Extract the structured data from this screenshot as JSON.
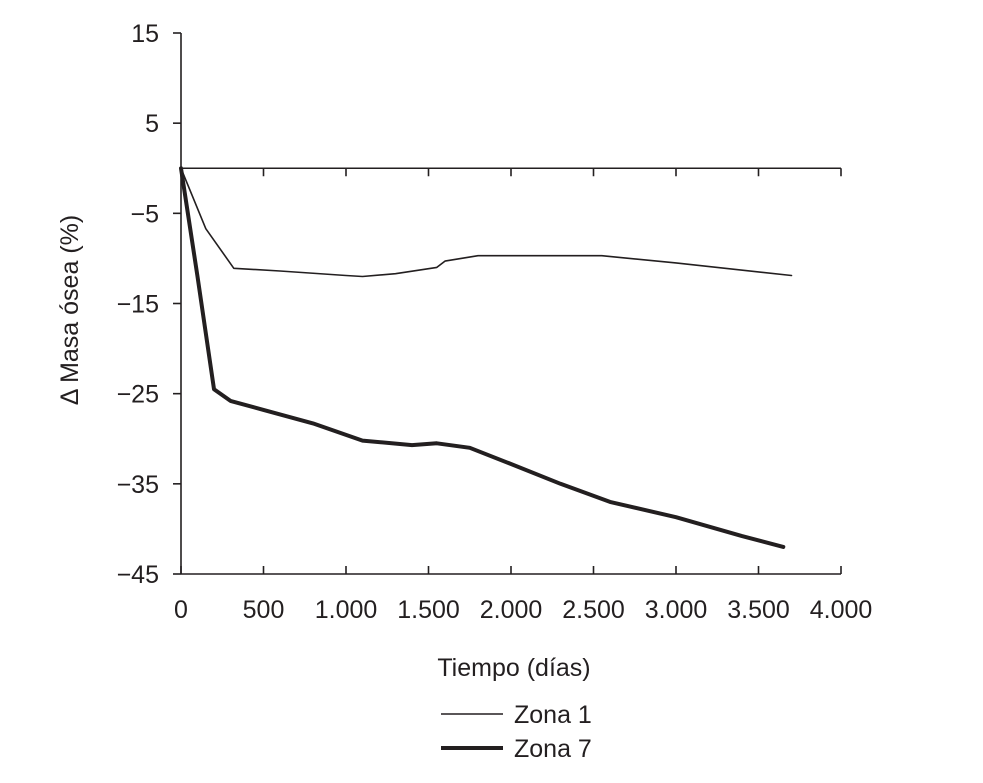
{
  "chart_data": {
    "type": "line",
    "title": "",
    "xlabel": "Tiempo (días)",
    "ylabel": "Δ Masa ósea (%)",
    "xlim": [
      0,
      4000
    ],
    "ylim": [
      -45,
      15
    ],
    "x_ticks": [
      0,
      500,
      1000,
      1500,
      2000,
      2500,
      3000,
      3500,
      4000
    ],
    "x_tick_labels": [
      "0",
      "500",
      "1.000",
      "1.500",
      "2.000",
      "2.500",
      "3.000",
      "3.500",
      "4.000"
    ],
    "y_ticks": [
      15,
      5,
      -5,
      -15,
      -25,
      -35,
      -45
    ],
    "y_tick_labels": [
      "15",
      "5",
      "−5",
      "−15",
      "−25",
      "−35",
      "−45"
    ],
    "zero_line": true,
    "grid": false,
    "legend_position": "bottom-center",
    "series": [
      {
        "name": "Zona 1",
        "color": "#231f20",
        "line_style": "thin",
        "x": [
          0,
          150,
          320,
          600,
          1000,
          1100,
          1300,
          1550,
          1600,
          1800,
          2000,
          2300,
          2550,
          3000,
          3700
        ],
        "y": [
          0,
          -6.7,
          -11.1,
          -11.4,
          -11.9,
          -12.0,
          -11.7,
          -11.0,
          -10.3,
          -9.7,
          -9.7,
          -9.7,
          -9.7,
          -10.5,
          -11.9
        ]
      },
      {
        "name": "Zona 7",
        "color": "#231f20",
        "line_style": "thick",
        "x": [
          0,
          100,
          200,
          300,
          500,
          800,
          1100,
          1400,
          1550,
          1750,
          2000,
          2300,
          2600,
          3000,
          3400,
          3650
        ],
        "y": [
          0,
          -12,
          -24.5,
          -25.8,
          -26.8,
          -28.3,
          -30.2,
          -30.7,
          -30.5,
          -31.0,
          -32.8,
          -35.0,
          -37.0,
          -38.7,
          -40.8,
          -42
        ]
      }
    ]
  }
}
